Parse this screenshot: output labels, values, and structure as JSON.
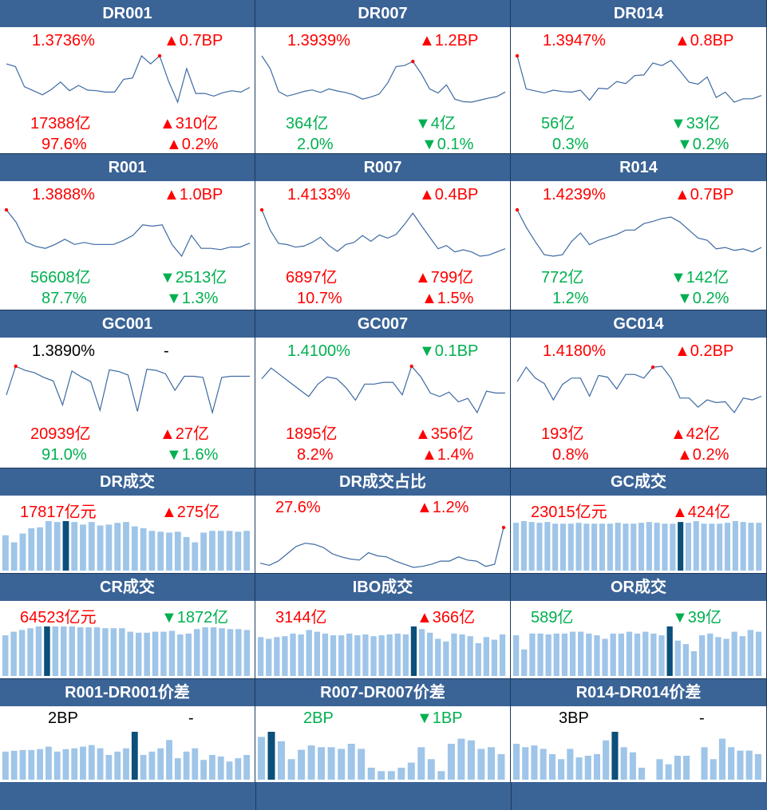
{
  "colors": {
    "header_bg": "#3a6396",
    "line": "#3d6aa3",
    "bar": "#9fc5e8",
    "bar_highlight": "#0b4f7a",
    "up": "#ff0000",
    "down": "#00b050"
  },
  "panels": [
    {
      "title": "DR001",
      "type": "line",
      "rate": "1.3736%",
      "rate_color": "red",
      "rate_chg": "▲0.7BP",
      "rate_chg_color": "red",
      "vol": "17388亿",
      "vol_color": "red",
      "vol_chg": "▲310亿",
      "vol_chg_color": "red",
      "share": "97.6%",
      "share_color": "red",
      "share_chg": "▲0.2%",
      "share_chg_color": "red",
      "series": [
        1.362,
        1.358,
        1.328,
        1.322,
        1.316,
        1.324,
        1.335,
        1.322,
        1.33,
        1.323,
        1.322,
        1.32,
        1.32,
        1.339,
        1.341,
        1.374,
        1.362,
        1.374,
        1.336,
        1.305,
        1.355,
        1.318,
        1.318,
        1.314,
        1.319,
        1.322,
        1.32,
        1.327
      ],
      "highlight": 17
    },
    {
      "title": "DR007",
      "type": "line",
      "rate": "1.3939%",
      "rate_color": "red",
      "rate_chg": "▲1.2BP",
      "rate_chg_color": "red",
      "vol": "364亿",
      "vol_color": "green",
      "vol_chg": "▼4亿",
      "vol_chg_color": "green",
      "share": "2.0%",
      "share_color": "green",
      "share_chg": "▼0.1%",
      "share_chg_color": "green",
      "series": [
        1.405,
        1.38,
        1.335,
        1.326,
        1.33,
        1.335,
        1.338,
        1.333,
        1.34,
        1.336,
        1.333,
        1.328,
        1.32,
        1.324,
        1.33,
        1.352,
        1.384,
        1.386,
        1.394,
        1.37,
        1.34,
        1.332,
        1.348,
        1.32,
        1.315,
        1.314,
        1.318,
        1.322,
        1.325,
        1.334
      ],
      "highlight": 18
    },
    {
      "title": "DR014",
      "type": "line",
      "rate": "1.3947%",
      "rate_color": "red",
      "rate_chg": "▲0.8BP",
      "rate_chg_color": "red",
      "vol": "56亿",
      "vol_color": "green",
      "vol_chg": "▼33亿",
      "vol_chg_color": "green",
      "share": "0.3%",
      "share_color": "green",
      "share_chg": "▼0.2%",
      "share_chg_color": "green",
      "series": [
        1.3947,
        1.345,
        1.342,
        1.339,
        1.343,
        1.341,
        1.34,
        1.343,
        1.328,
        1.346,
        1.345,
        1.356,
        1.353,
        1.365,
        1.366,
        1.384,
        1.38,
        1.388,
        1.372,
        1.355,
        1.352,
        1.363,
        1.332,
        1.34,
        1.325,
        1.33,
        1.33,
        1.335
      ],
      "highlight": 0
    },
    {
      "title": "R001",
      "type": "line",
      "rate": "1.3888%",
      "rate_color": "red",
      "rate_chg": "▲1.0BP",
      "rate_chg_color": "red",
      "vol": "56608亿",
      "vol_color": "green",
      "vol_chg": "▼2513亿",
      "vol_chg_color": "green",
      "share": "87.7%",
      "share_color": "green",
      "share_chg": "▼1.3%",
      "share_chg_color": "green",
      "series": [
        1.389,
        1.37,
        1.34,
        1.333,
        1.33,
        1.336,
        1.344,
        1.336,
        1.339,
        1.336,
        1.336,
        1.336,
        1.342,
        1.35,
        1.366,
        1.364,
        1.366,
        1.336,
        1.318,
        1.35,
        1.33,
        1.33,
        1.328,
        1.332,
        1.332,
        1.338
      ],
      "highlight": 0
    },
    {
      "title": "R007",
      "type": "line",
      "rate": "1.4133%",
      "rate_color": "red",
      "rate_chg": "▲0.4BP",
      "rate_chg_color": "red",
      "vol": "6897亿",
      "vol_color": "red",
      "vol_chg": "▲799亿",
      "vol_chg_color": "red",
      "share": "10.7%",
      "share_color": "red",
      "share_chg": "▲1.5%",
      "share_chg_color": "red",
      "series": [
        1.4133,
        1.375,
        1.35,
        1.348,
        1.343,
        1.345,
        1.352,
        1.362,
        1.346,
        1.335,
        1.348,
        1.352,
        1.365,
        1.354,
        1.366,
        1.36,
        1.367,
        1.386,
        1.407,
        1.384,
        1.362,
        1.34,
        1.346,
        1.334,
        1.338,
        1.334,
        1.326,
        1.328,
        1.334,
        1.34
      ],
      "highlight": 0
    },
    {
      "title": "R014",
      "type": "line",
      "rate": "1.4239%",
      "rate_color": "red",
      "rate_chg": "▲0.7BP",
      "rate_chg_color": "red",
      "vol": "772亿",
      "vol_color": "green",
      "vol_chg": "▼142亿",
      "vol_chg_color": "green",
      "share": "1.2%",
      "share_color": "green",
      "share_chg": "▼0.2%",
      "share_chg_color": "green",
      "series": [
        1.4239,
        1.4,
        1.38,
        1.362,
        1.36,
        1.362,
        1.38,
        1.392,
        1.376,
        1.382,
        1.386,
        1.39,
        1.396,
        1.396,
        1.405,
        1.408,
        1.412,
        1.414,
        1.407,
        1.396,
        1.385,
        1.382,
        1.37,
        1.372,
        1.368,
        1.37,
        1.366,
        1.372
      ],
      "highlight": 0
    },
    {
      "title": "GC001",
      "type": "line",
      "rate": "1.3890%",
      "rate_color": "black",
      "rate_chg": "-",
      "rate_chg_color": "black",
      "vol": "20939亿",
      "vol_color": "red",
      "vol_chg": "▲27亿",
      "vol_chg_color": "red",
      "share": "91.0%",
      "share_color": "green",
      "share_chg": "▼1.6%",
      "share_chg_color": "green",
      "series": [
        1.34,
        1.389,
        1.382,
        1.378,
        1.37,
        1.364,
        1.323,
        1.381,
        1.371,
        1.363,
        1.314,
        1.383,
        1.38,
        1.374,
        1.312,
        1.384,
        1.382,
        1.376,
        1.348,
        1.372,
        1.372,
        1.37,
        1.31,
        1.37,
        1.372,
        1.372,
        1.372
      ],
      "highlight": 1
    },
    {
      "title": "GC007",
      "type": "line",
      "rate": "1.4100%",
      "rate_color": "green",
      "rate_chg": "▼0.1BP",
      "rate_chg_color": "green",
      "vol": "1895亿",
      "vol_color": "red",
      "vol_chg": "▲356亿",
      "vol_chg_color": "red",
      "share": "8.2%",
      "share_color": "red",
      "share_chg": "▲1.4%",
      "share_chg_color": "red",
      "series": [
        1.38,
        1.392,
        1.384,
        1.376,
        1.368,
        1.36,
        1.374,
        1.382,
        1.38,
        1.37,
        1.356,
        1.374,
        1.374,
        1.376,
        1.376,
        1.362,
        1.394,
        1.382,
        1.364,
        1.36,
        1.365,
        1.354,
        1.358,
        1.342,
        1.366,
        1.364,
        1.364
      ],
      "highlight": 16
    },
    {
      "title": "GC014",
      "type": "line",
      "rate": "1.4180%",
      "rate_color": "red",
      "rate_chg": "▲0.2BP",
      "rate_chg_color": "red",
      "vol": "193亿",
      "vol_color": "red",
      "vol_chg": "▲42亿",
      "vol_chg_color": "red",
      "share": "0.8%",
      "share_color": "red",
      "share_chg": "▲0.2%",
      "share_chg_color": "red",
      "series": [
        1.388,
        1.404,
        1.392,
        1.386,
        1.368,
        1.385,
        1.392,
        1.392,
        1.372,
        1.395,
        1.393,
        1.38,
        1.396,
        1.396,
        1.392,
        1.404,
        1.405,
        1.392,
        1.37,
        1.37,
        1.36,
        1.368,
        1.365,
        1.366,
        1.354,
        1.37,
        1.368,
        1.372
      ],
      "highlight": 15
    },
    {
      "title": "DR成交",
      "type": "bar",
      "value": "17817亿元",
      "value_color": "red",
      "chg": "▲275亿",
      "chg_color": "red",
      "bars": [
        40,
        32,
        42,
        48,
        49,
        56,
        55,
        56,
        55,
        52,
        55,
        51,
        52,
        54,
        55,
        50,
        48,
        45,
        44,
        43,
        44,
        38,
        32,
        43,
        45,
        45,
        45,
        44,
        45
      ],
      "highlight": 7
    },
    {
      "title": "DR成交占比",
      "type": "line",
      "value": "27.6%",
      "value_color": "red",
      "chg": "▲1.2%",
      "chg_color": "red",
      "series": [
        0.6,
        0.4,
        0.8,
        1.5,
        2.2,
        2.5,
        2.4,
        2.1,
        1.5,
        1.2,
        1.0,
        0.9,
        1.6,
        1.3,
        1.2,
        0.8,
        0.5,
        0.2,
        0.3,
        0.5,
        0.8,
        0.8,
        1.2,
        0.9,
        0.8,
        0.3,
        0.5,
        4.0
      ],
      "highlight": 27
    },
    {
      "title": "GC成交",
      "type": "bar",
      "value": "23015亿元",
      "value_color": "red",
      "chg": "▲424亿",
      "chg_color": "red",
      "bars": [
        56,
        58,
        57,
        56,
        57,
        55,
        55,
        55,
        56,
        55,
        55,
        55,
        55,
        56,
        55,
        55,
        56,
        57,
        56,
        55,
        55,
        57,
        56,
        58,
        55,
        55,
        55,
        56,
        58,
        57,
        56,
        56
      ],
      "highlight": 21
    },
    {
      "title": "CR成交",
      "type": "bar",
      "value": "64523亿元",
      "value_color": "red",
      "chg": "▼1872亿",
      "chg_color": "green",
      "bars": [
        46,
        50,
        52,
        54,
        56,
        56,
        56,
        56,
        56,
        55,
        55,
        55,
        54,
        54,
        54,
        50,
        49,
        49,
        50,
        50,
        51,
        47,
        48,
        53,
        55,
        55,
        54,
        53,
        53,
        52
      ],
      "highlight": 5
    },
    {
      "title": "IBO成交",
      "type": "bar",
      "value": "3144亿",
      "value_color": "red",
      "chg": "▲366亿",
      "chg_color": "red",
      "bars": [
        44,
        42,
        44,
        45,
        48,
        47,
        52,
        50,
        48,
        46,
        46,
        48,
        46,
        47,
        45,
        46,
        47,
        48,
        47,
        56,
        53,
        49,
        42,
        39,
        48,
        47,
        45,
        37,
        44,
        41,
        47
      ],
      "highlight": 19
    },
    {
      "title": "OR成交",
      "type": "bar",
      "value": "589亿",
      "value_color": "green",
      "chg": "▼39亿",
      "chg_color": "green",
      "bars": [
        46,
        30,
        48,
        48,
        47,
        48,
        48,
        50,
        50,
        48,
        46,
        42,
        48,
        48,
        50,
        48,
        50,
        48,
        46,
        56,
        40,
        36,
        28,
        46,
        48,
        44,
        42,
        50,
        45,
        52,
        50
      ],
      "highlight": 19
    },
    {
      "title": "R001-DR001价差",
      "type": "bar",
      "value": "2BP",
      "value_color": "black",
      "chg": "-",
      "chg_color": "black",
      "bars": [
        34,
        35,
        36,
        36,
        37,
        40,
        34,
        37,
        38,
        40,
        42,
        38,
        30,
        34,
        38,
        58,
        30,
        34,
        38,
        48,
        26,
        34,
        38,
        24,
        30,
        28,
        22,
        26,
        30
      ],
      "highlight": 15
    },
    {
      "title": "R007-DR007价差",
      "type": "bar",
      "value": "2BP",
      "value_color": "green",
      "chg": "▼1BP",
      "chg_color": "green",
      "bars": [
        50,
        56,
        45,
        24,
        35,
        40,
        38,
        38,
        36,
        42,
        36,
        14,
        10,
        10,
        14,
        20,
        38,
        24,
        10,
        42,
        48,
        46,
        36,
        38,
        30
      ],
      "highlight": 1
    },
    {
      "title": "R014-DR014价差",
      "type": "bar",
      "value": "3BP",
      "value_color": "black",
      "chg": "-",
      "chg_color": "black",
      "bars": [
        42,
        38,
        40,
        36,
        30,
        24,
        36,
        26,
        28,
        30,
        46,
        56,
        38,
        32,
        14,
        0,
        24,
        18,
        28,
        28,
        0,
        38,
        24,
        48,
        38,
        34,
        34,
        30
      ],
      "highlight": 11
    }
  ]
}
